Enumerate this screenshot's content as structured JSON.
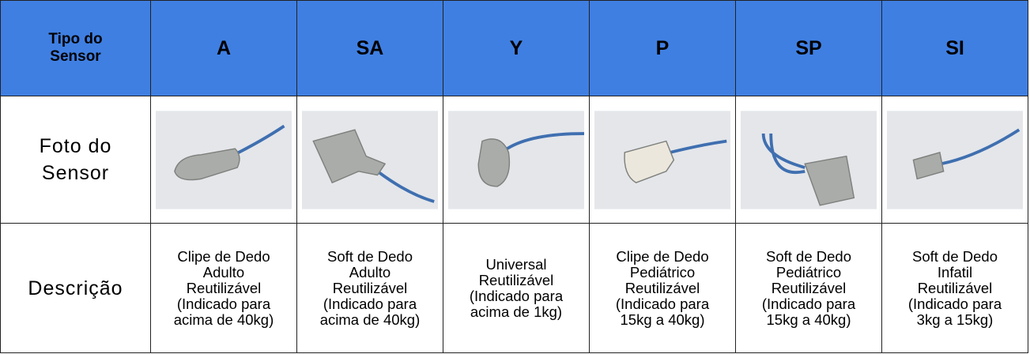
{
  "table": {
    "header": [
      "Tipo do Sensor",
      "A",
      "SA",
      "Y",
      "P",
      "SP",
      "SI"
    ],
    "photo_row": {
      "label": "Foto do Sensor"
    },
    "description_row": {
      "label": "Descrição",
      "cells": [
        [
          "Clipe de Dedo",
          "Adulto",
          "Reutilizável",
          "(Indicado para",
          "acima de 40kg)"
        ],
        [
          "Soft de Dedo",
          "Adulto",
          "Reutilizável",
          "(Indicado para",
          "acima de 40kg)"
        ],
        [
          "Universal",
          "Reutilizável",
          "(Indicado para",
          "acima de 1kg)"
        ],
        [
          "Clipe de Dedo",
          "Pediátrico",
          "Reutilizável",
          "(Indicado para",
          "15kg a 40kg)"
        ],
        [
          "Soft de Dedo",
          "Pediátrico",
          "Reutilizável",
          "(Indicado para",
          "15kg a 40kg)"
        ],
        [
          "Soft de Dedo",
          "Infatil",
          "Reutilizável",
          "(Indicado para",
          "3kg a 15kg)"
        ]
      ]
    }
  }
}
